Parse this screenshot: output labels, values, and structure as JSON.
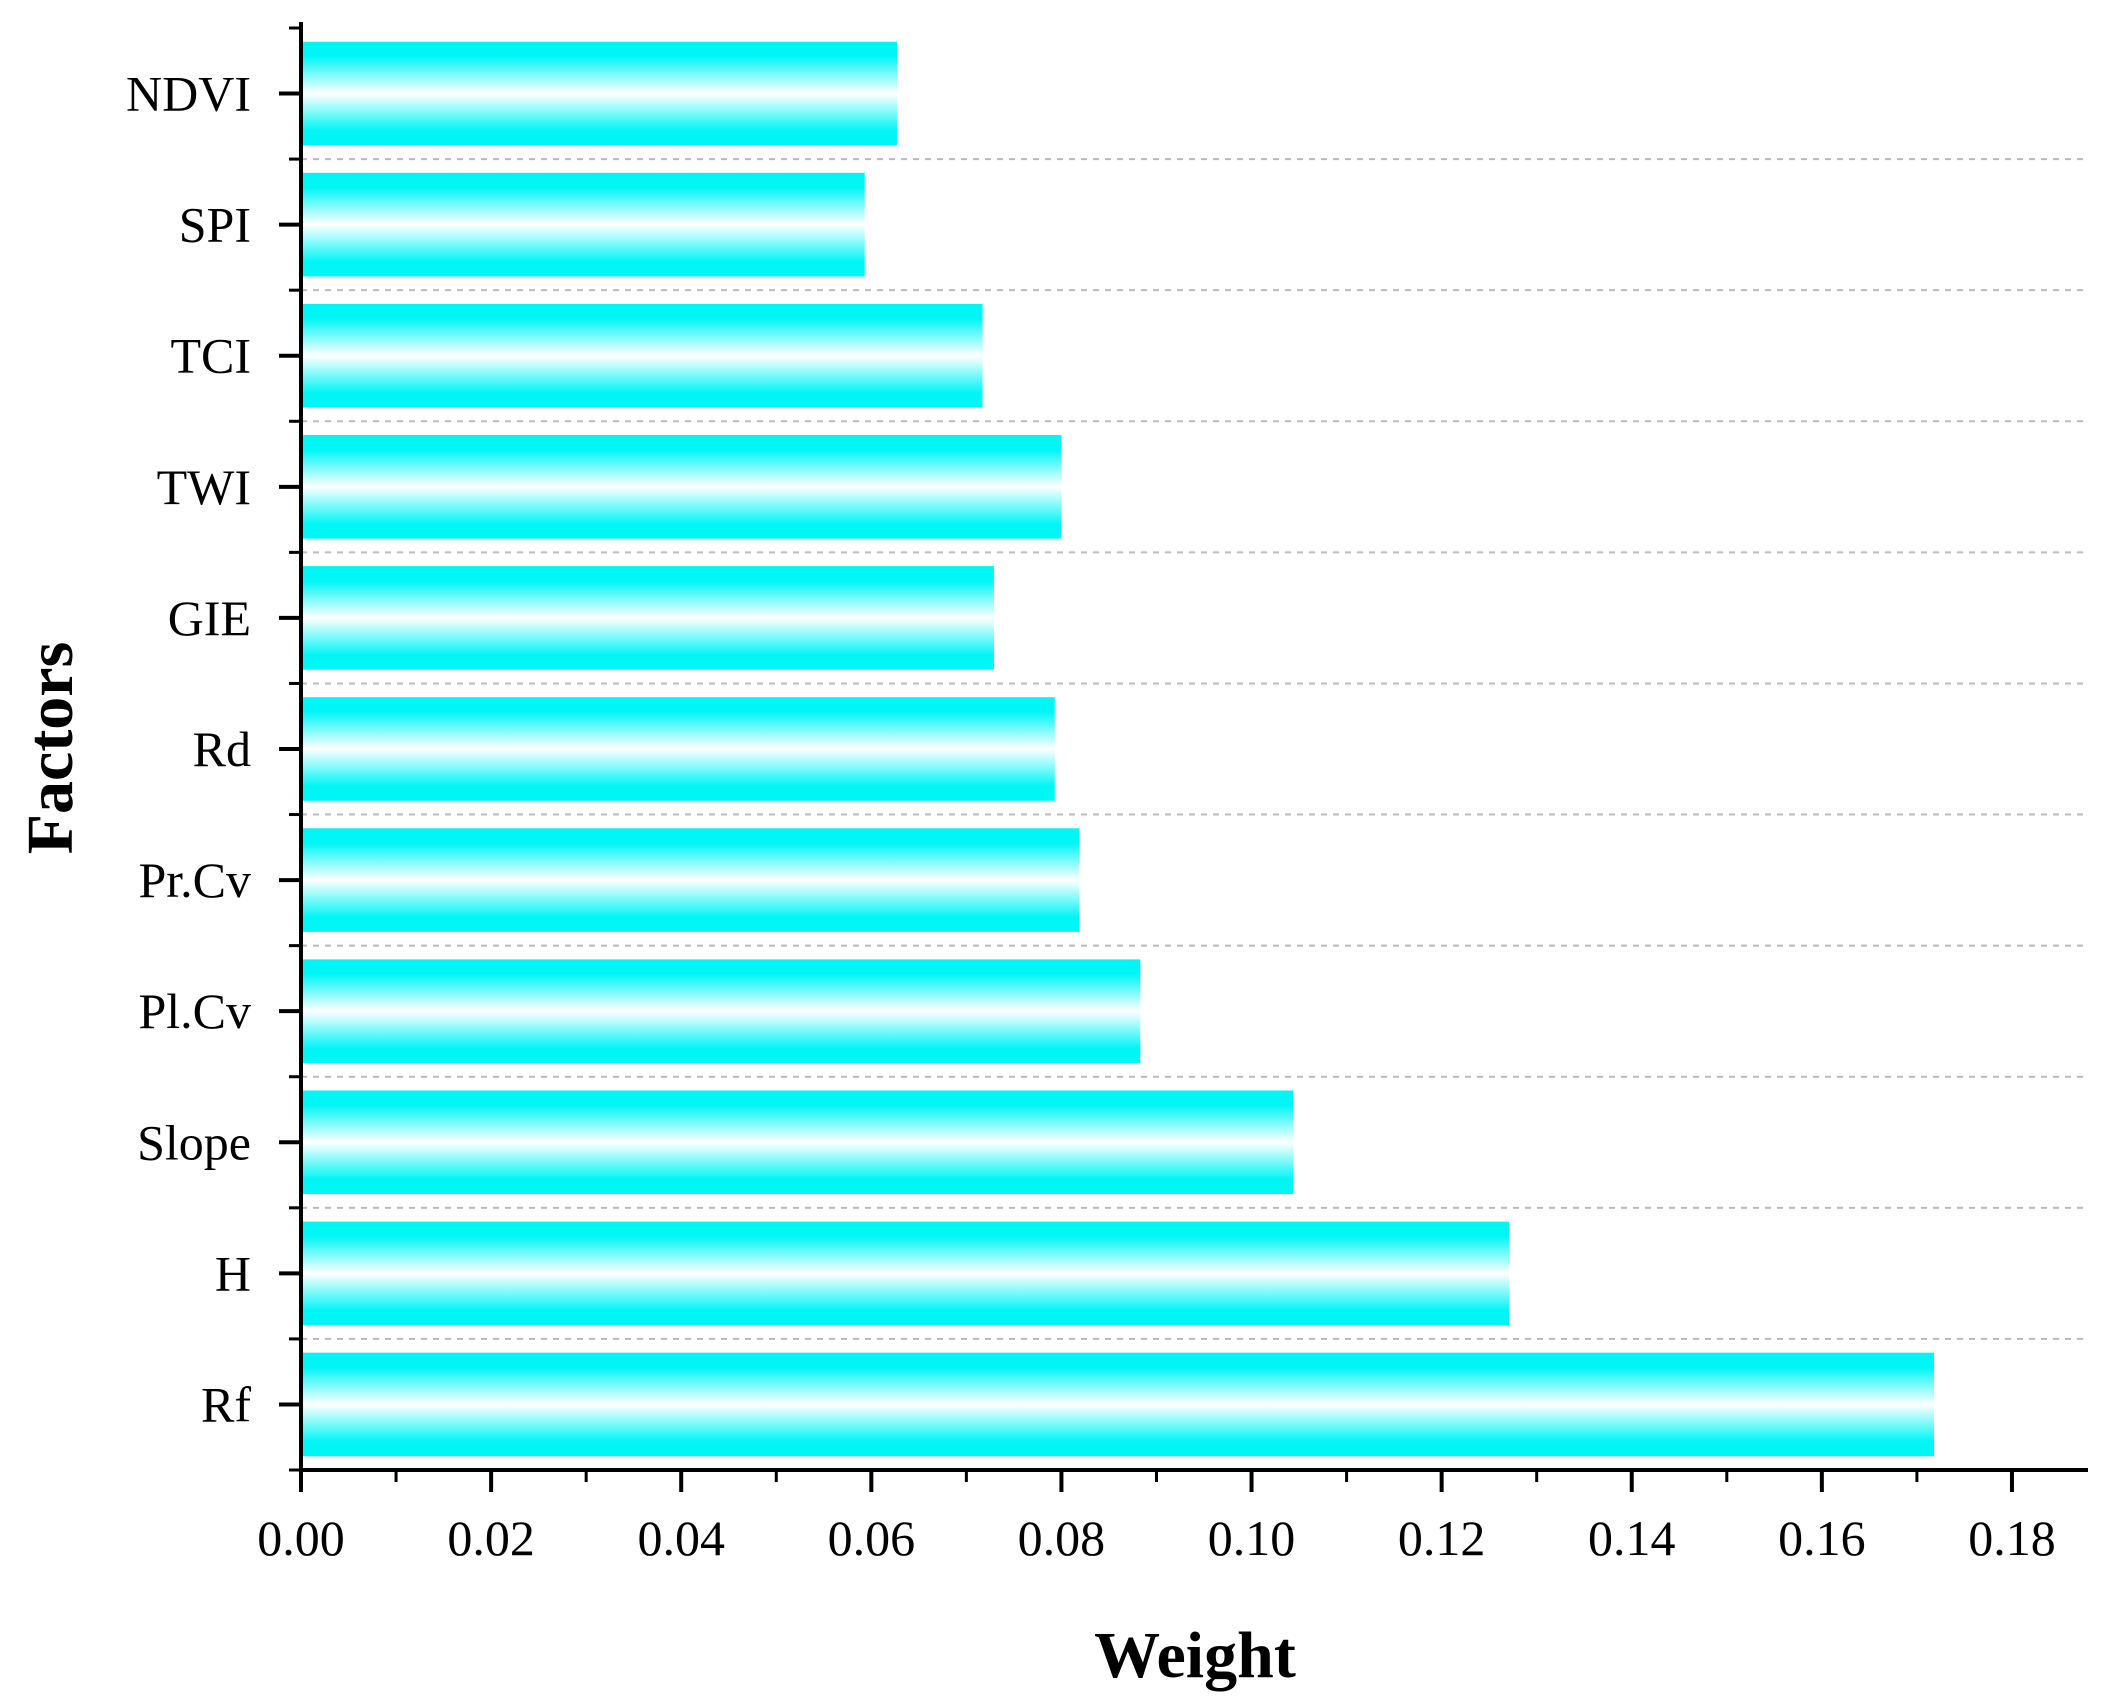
{
  "chart_data": {
    "type": "bar",
    "orientation": "horizontal",
    "title": "",
    "xlabel": "Weight",
    "ylabel": "Factors",
    "categories": [
      "Rf",
      "H",
      "Slope",
      "Pl.Cv",
      "Pr.Cv",
      "Rd",
      "GIE",
      "TWI",
      "TCI",
      "SPI",
      "NDVI"
    ],
    "values": [
      0.1718,
      0.1271,
      0.1044,
      0.0883,
      0.0819,
      0.0793,
      0.0729,
      0.08,
      0.0717,
      0.0593,
      0.0627
    ],
    "xlim": [
      0,
      0.188
    ],
    "xticks": [
      "0.00",
      "0.02",
      "0.04",
      "0.06",
      "0.08",
      "0.10",
      "0.12",
      "0.14",
      "0.16",
      "0.18"
    ],
    "grid": "horizontal dashed",
    "legend": "none",
    "bar_color": "#00F5F5",
    "bar_highlight": "#FFFFFF"
  }
}
